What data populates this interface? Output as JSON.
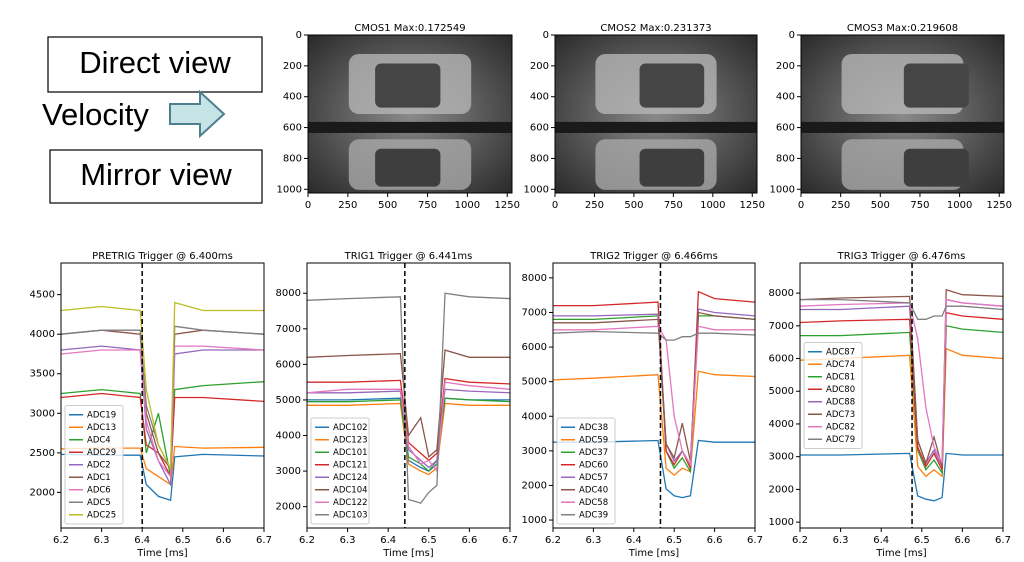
{
  "slide": {
    "direct_view": "Direct view",
    "velocity": "Velocity",
    "mirror_view": "Mirror view"
  },
  "chart_data": [
    {
      "type": "image",
      "title": "CMOS1 Max:0.172549",
      "xlim": [
        0,
        1280
      ],
      "xticks": [
        0,
        250,
        500,
        750,
        1000,
        1250
      ],
      "ylim": [
        1024,
        0
      ],
      "yticks": [
        0,
        200,
        400,
        600,
        800,
        1000
      ]
    },
    {
      "type": "image",
      "title": "CMOS2 Max:0.231373",
      "xlim": [
        0,
        1280
      ],
      "xticks": [
        0,
        250,
        500,
        750,
        1000,
        1250
      ],
      "ylim": [
        1024,
        0
      ],
      "yticks": [
        0,
        200,
        400,
        600,
        800,
        1000
      ]
    },
    {
      "type": "image",
      "title": "CMOS3 Max:0.219608",
      "xlim": [
        0,
        1280
      ],
      "xticks": [
        0,
        250,
        500,
        750,
        1000,
        1250
      ],
      "ylim": [
        1024,
        0
      ],
      "yticks": [
        0,
        200,
        400,
        600,
        800,
        1000
      ]
    },
    {
      "type": "line",
      "title": "PRETRIG  Trigger @   6.400ms",
      "x_label": "Time [ms]",
      "trigger": 6.4,
      "legend": "lower left",
      "xlim": [
        6.2,
        6.7
      ],
      "xticks": [
        6.2,
        6.3,
        6.4,
        6.5,
        6.6,
        6.7
      ],
      "ylim": [
        1550,
        4900
      ],
      "yticks": [
        2000,
        2500,
        3000,
        3500,
        4000,
        4500
      ],
      "x": [
        6.2,
        6.3,
        6.395,
        6.41,
        6.44,
        6.47,
        6.48,
        6.55,
        6.7
      ],
      "series": [
        {
          "name": "ADC19",
          "color": "#1f77b4",
          "values": [
            2480,
            2470,
            2470,
            2100,
            1950,
            1900,
            2450,
            2480,
            2460
          ]
        },
        {
          "name": "ADC13",
          "color": "#ff7f0e",
          "values": [
            2550,
            2560,
            2560,
            2300,
            2200,
            2100,
            2580,
            2560,
            2570
          ]
        },
        {
          "name": "ADC4",
          "color": "#2ca02c",
          "values": [
            3250,
            3300,
            3250,
            2500,
            3000,
            2200,
            3300,
            3350,
            3400
          ]
        },
        {
          "name": "ADC29",
          "color": "#d62728",
          "values": [
            3200,
            3250,
            3200,
            2600,
            2500,
            2200,
            3200,
            3200,
            3150
          ]
        },
        {
          "name": "ADC2",
          "color": "#9467bd",
          "values": [
            3800,
            3850,
            3800,
            2800,
            2400,
            2100,
            3750,
            3800,
            3800
          ]
        },
        {
          "name": "ADC1",
          "color": "#8c564b",
          "values": [
            4000,
            4050,
            4000,
            3000,
            2500,
            2300,
            4000,
            4050,
            4000
          ]
        },
        {
          "name": "ADC6",
          "color": "#e377c2",
          "values": [
            3750,
            3800,
            3800,
            2900,
            2400,
            2200,
            3850,
            3850,
            3800
          ]
        },
        {
          "name": "ADC5",
          "color": "#7f7f7f",
          "values": [
            4000,
            4050,
            4050,
            3100,
            2600,
            2300,
            4100,
            4050,
            4000
          ]
        },
        {
          "name": "ADC25",
          "color": "#bcbd22",
          "values": [
            4300,
            4350,
            4300,
            3300,
            2600,
            2300,
            4400,
            4300,
            4300
          ]
        }
      ]
    },
    {
      "type": "line",
      "title": "TRIG1  Trigger @   6.441ms",
      "x_label": "Time [ms]",
      "trigger": 6.441,
      "legend": "lower left",
      "xlim": [
        6.2,
        6.7
      ],
      "xticks": [
        6.2,
        6.3,
        6.4,
        6.5,
        6.6,
        6.7
      ],
      "ylim": [
        1400,
        8850
      ],
      "yticks": [
        2000,
        3000,
        4000,
        5000,
        6000,
        7000,
        8000
      ],
      "x": [
        6.2,
        6.3,
        6.43,
        6.45,
        6.48,
        6.5,
        6.52,
        6.54,
        6.6,
        6.7
      ],
      "series": [
        {
          "name": "ADC102",
          "color": "#1f77b4",
          "values": [
            5000,
            5000,
            5050,
            3300,
            3100,
            3000,
            3200,
            5050,
            5000,
            5000
          ]
        },
        {
          "name": "ADC123",
          "color": "#ff7f0e",
          "values": [
            4850,
            4850,
            4900,
            3200,
            3000,
            2900,
            3100,
            4900,
            4850,
            4850
          ]
        },
        {
          "name": "ADC101",
          "color": "#2ca02c",
          "values": [
            4950,
            4950,
            5000,
            3400,
            3200,
            3000,
            3300,
            5050,
            5000,
            4950
          ]
        },
        {
          "name": "ADC121",
          "color": "#d62728",
          "values": [
            5500,
            5500,
            5550,
            3800,
            3500,
            3300,
            3500,
            5600,
            5500,
            5450
          ]
        },
        {
          "name": "ADC124",
          "color": "#9467bd",
          "values": [
            5200,
            5200,
            5250,
            3600,
            3300,
            3100,
            3300,
            5300,
            5250,
            5200
          ]
        },
        {
          "name": "ADC104",
          "color": "#8c564b",
          "values": [
            6200,
            6250,
            6300,
            4000,
            4500,
            3400,
            3600,
            6400,
            6200,
            6200
          ]
        },
        {
          "name": "ADC122",
          "color": "#e377c2",
          "values": [
            5200,
            5300,
            5300,
            3700,
            3200,
            3300,
            3000,
            5500,
            5400,
            5300
          ]
        },
        {
          "name": "ADC103",
          "color": "#7f7f7f",
          "values": [
            7800,
            7850,
            7900,
            2200,
            2100,
            2400,
            2600,
            8000,
            7900,
            7850
          ]
        }
      ]
    },
    {
      "type": "line",
      "title": "TRIG2  Trigger @   6.466ms",
      "x_label": "Time [ms]",
      "trigger": 6.466,
      "legend": "lower left",
      "xlim": [
        6.2,
        6.7
      ],
      "xticks": [
        6.2,
        6.3,
        6.4,
        6.5,
        6.6,
        6.7
      ],
      "ylim": [
        770,
        8430
      ],
      "yticks": [
        1000,
        2000,
        3000,
        4000,
        5000,
        6000,
        7000,
        8000
      ],
      "x": [
        6.2,
        6.3,
        6.46,
        6.48,
        6.5,
        6.52,
        6.54,
        6.56,
        6.6,
        6.7
      ],
      "series": [
        {
          "name": "ADC38",
          "color": "#1f77b4",
          "values": [
            3250,
            3250,
            3300,
            1900,
            1700,
            1650,
            1700,
            3300,
            3250,
            3250
          ]
        },
        {
          "name": "ADC59",
          "color": "#ff7f0e",
          "values": [
            5050,
            5100,
            5200,
            2500,
            2300,
            2500,
            2400,
            5300,
            5200,
            5150
          ]
        },
        {
          "name": "ADC37",
          "color": "#2ca02c",
          "values": [
            6800,
            6800,
            6900,
            3000,
            2500,
            2800,
            2400,
            6900,
            6900,
            6800
          ]
        },
        {
          "name": "ADC60",
          "color": "#d62728",
          "values": [
            7200,
            7200,
            7300,
            3000,
            2600,
            3000,
            2500,
            7600,
            7400,
            7300
          ]
        },
        {
          "name": "ADC57",
          "color": "#9467bd",
          "values": [
            6900,
            6900,
            6950,
            3200,
            2700,
            3000,
            2600,
            7100,
            7000,
            6900
          ]
        },
        {
          "name": "ADC40",
          "color": "#8c564b",
          "values": [
            6700,
            6700,
            6800,
            3200,
            2800,
            3800,
            2700,
            7000,
            6900,
            6800
          ]
        },
        {
          "name": "ADC58",
          "color": "#e377c2",
          "values": [
            6500,
            6500,
            6600,
            6200,
            4000,
            3000,
            2600,
            6600,
            6500,
            6500
          ]
        },
        {
          "name": "ADC39",
          "color": "#7f7f7f",
          "values": [
            6400,
            6450,
            6400,
            6200,
            6200,
            6300,
            6300,
            6400,
            6400,
            6350
          ]
        }
      ]
    },
    {
      "type": "line",
      "title": "TRIG3  Trigger @   6.476ms",
      "x_label": "Time [ms]",
      "trigger": 6.476,
      "legend": "center left",
      "xlim": [
        6.2,
        6.7
      ],
      "xticks": [
        6.2,
        6.3,
        6.4,
        6.5,
        6.6,
        6.7
      ],
      "ylim": [
        820,
        8920
      ],
      "yticks": [
        1000,
        2000,
        3000,
        4000,
        5000,
        6000,
        7000,
        8000
      ],
      "x": [
        6.2,
        6.3,
        6.47,
        6.49,
        6.51,
        6.53,
        6.55,
        6.56,
        6.6,
        6.7
      ],
      "series": [
        {
          "name": "ADC87",
          "color": "#1f77b4",
          "values": [
            3050,
            3050,
            3100,
            1800,
            1700,
            1650,
            1750,
            3100,
            3050,
            3050
          ]
        },
        {
          "name": "ADC74",
          "color": "#ff7f0e",
          "values": [
            5950,
            6000,
            6100,
            2700,
            2400,
            2600,
            2400,
            6300,
            6100,
            6000
          ]
        },
        {
          "name": "ADC81",
          "color": "#2ca02c",
          "values": [
            6700,
            6700,
            6800,
            3200,
            2600,
            2900,
            2500,
            7000,
            6900,
            6800
          ]
        },
        {
          "name": "ADC80",
          "color": "#d62728",
          "values": [
            7100,
            7150,
            7200,
            3300,
            2700,
            3100,
            2600,
            7400,
            7300,
            7200
          ]
        },
        {
          "name": "ADC88",
          "color": "#9467bd",
          "values": [
            7500,
            7500,
            7600,
            3500,
            2800,
            3200,
            2700,
            7800,
            7700,
            7600
          ]
        },
        {
          "name": "ADC73",
          "color": "#8c564b",
          "values": [
            7800,
            7850,
            7900,
            3500,
            2800,
            3600,
            2700,
            8100,
            7950,
            7900
          ]
        },
        {
          "name": "ADC82",
          "color": "#e377c2",
          "values": [
            7600,
            7650,
            7700,
            6600,
            4500,
            3300,
            2800,
            7800,
            7700,
            7600
          ]
        },
        {
          "name": "ADC79",
          "color": "#7f7f7f",
          "values": [
            7800,
            7800,
            7700,
            7200,
            7200,
            7300,
            7300,
            7600,
            7600,
            7500
          ]
        }
      ]
    }
  ]
}
